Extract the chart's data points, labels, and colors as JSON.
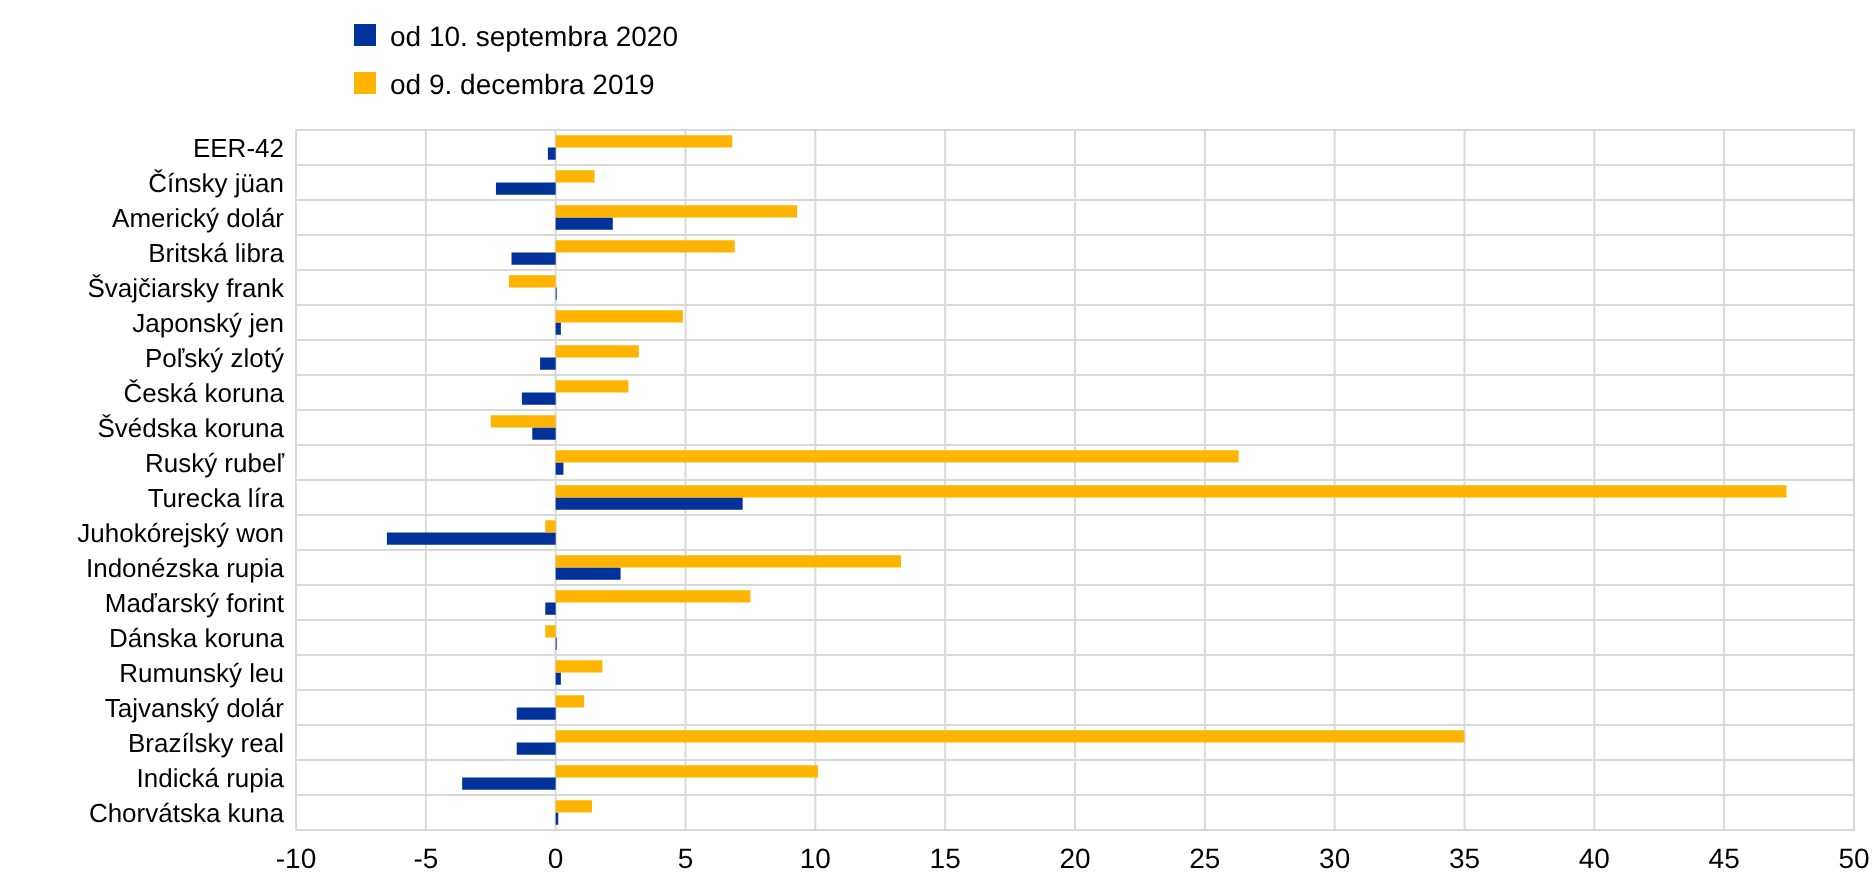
{
  "chart_data": {
    "type": "bar",
    "orientation": "horizontal",
    "categories": [
      "EER-42",
      "Čínsky jüan",
      "Americký dolár",
      "Britská libra",
      "Švajčiarsky frank",
      "Japonský jen",
      "Poľský zlotý",
      "Česká koruna",
      "Švédska koruna",
      "Ruský rubeľ",
      "Turecka líra",
      "Juhokórejský won",
      "Indonézska rupia",
      "Maďarský forint",
      "Dánska koruna",
      "Rumunský leu",
      "Tajvanský dolár",
      "Brazílsky real",
      "Indická rupia",
      "Chorvátska kuna"
    ],
    "series": [
      {
        "name": "od 10. septembra 2020",
        "color": "#003299",
        "values": [
          -0.3,
          -2.3,
          2.2,
          -1.7,
          0,
          0.2,
          -0.6,
          -1.3,
          -0.9,
          0.3,
          7.2,
          -6.5,
          2.5,
          -0.4,
          0,
          0.2,
          -1.5,
          -1.5,
          -3.6,
          0.1
        ]
      },
      {
        "name": "od 9. decembra 2019",
        "color": "#ffb400",
        "values": [
          6.8,
          1.5,
          9.3,
          6.9,
          -1.8,
          4.9,
          3.2,
          2.8,
          -2.5,
          26.3,
          47.4,
          -0.4,
          13.3,
          7.5,
          -0.4,
          1.8,
          1.1,
          35,
          10.1,
          1.4
        ]
      }
    ],
    "xlim": [
      -10,
      50
    ],
    "xticks": [
      -10,
      -5,
      0,
      5,
      10,
      15,
      20,
      25,
      30,
      35,
      40,
      45,
      50
    ],
    "grid": true,
    "legend": "top left"
  }
}
